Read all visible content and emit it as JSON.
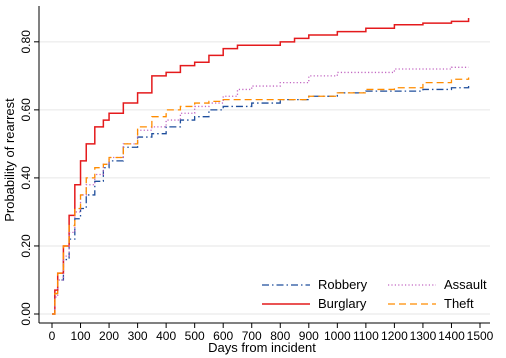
{
  "chart_data": {
    "type": "line",
    "title": "",
    "xlabel": "Days from incident",
    "ylabel": "Probability of rearrest",
    "xlim": [
      0,
      1500
    ],
    "ylim": [
      0,
      0.87
    ],
    "x_ticks": [
      0,
      100,
      200,
      300,
      400,
      500,
      600,
      700,
      800,
      900,
      1000,
      1100,
      1200,
      1300,
      1400,
      1500
    ],
    "x_tick_labels": [
      "0",
      "100",
      "200",
      "300",
      "400",
      "500",
      "600",
      "700",
      "800",
      "900",
      "1000",
      "1100",
      "1200",
      "1300",
      "1400",
      "1500"
    ],
    "y_ticks": [
      0,
      0.2,
      0.4,
      0.6,
      0.8
    ],
    "y_tick_labels": [
      "0.00",
      "0.20",
      "0.40",
      "0.60",
      "0.80"
    ],
    "grid": true,
    "legend_position": "bottom-right",
    "legend_columns": 2,
    "series": [
      {
        "name": "Robbery",
        "color": "#1f4e9c",
        "style": "dash-dot",
        "x": [
          0,
          10,
          20,
          40,
          60,
          80,
          100,
          120,
          150,
          180,
          200,
          250,
          300,
          350,
          400,
          450,
          500,
          550,
          600,
          700,
          800,
          900,
          1000,
          1100,
          1200,
          1300,
          1400,
          1460
        ],
        "y": [
          0,
          0.06,
          0.1,
          0.16,
          0.22,
          0.28,
          0.31,
          0.35,
          0.39,
          0.43,
          0.45,
          0.49,
          0.52,
          0.53,
          0.55,
          0.57,
          0.58,
          0.6,
          0.61,
          0.62,
          0.63,
          0.64,
          0.65,
          0.655,
          0.655,
          0.66,
          0.665,
          0.67
        ]
      },
      {
        "name": "Burglary",
        "color": "#e41a1c",
        "style": "solid",
        "x": [
          0,
          10,
          20,
          40,
          60,
          80,
          100,
          120,
          150,
          180,
          200,
          250,
          300,
          350,
          400,
          450,
          500,
          550,
          600,
          650,
          700,
          800,
          850,
          900,
          1000,
          1100,
          1200,
          1300,
          1400,
          1460
        ],
        "y": [
          0,
          0.07,
          0.12,
          0.2,
          0.29,
          0.38,
          0.45,
          0.5,
          0.55,
          0.57,
          0.59,
          0.62,
          0.65,
          0.7,
          0.71,
          0.73,
          0.74,
          0.76,
          0.78,
          0.79,
          0.79,
          0.8,
          0.81,
          0.82,
          0.83,
          0.84,
          0.85,
          0.855,
          0.86,
          0.87
        ]
      },
      {
        "name": "Assault",
        "color": "#c266c2",
        "style": "dotted",
        "x": [
          0,
          10,
          20,
          40,
          60,
          80,
          100,
          120,
          150,
          180,
          200,
          250,
          300,
          350,
          400,
          450,
          500,
          550,
          600,
          650,
          700,
          800,
          900,
          1000,
          1100,
          1200,
          1300,
          1400,
          1460
        ],
        "y": [
          0,
          0.05,
          0.1,
          0.17,
          0.24,
          0.3,
          0.35,
          0.38,
          0.41,
          0.44,
          0.46,
          0.5,
          0.54,
          0.55,
          0.57,
          0.59,
          0.61,
          0.62,
          0.64,
          0.66,
          0.67,
          0.68,
          0.7,
          0.71,
          0.71,
          0.72,
          0.72,
          0.725,
          0.725
        ]
      },
      {
        "name": "Theft",
        "color": "#ff8c00",
        "style": "dashed",
        "x": [
          0,
          10,
          20,
          40,
          60,
          80,
          100,
          120,
          150,
          180,
          200,
          250,
          300,
          350,
          400,
          450,
          500,
          550,
          600,
          700,
          800,
          900,
          1000,
          1100,
          1200,
          1300,
          1400,
          1460
        ],
        "y": [
          0,
          0.06,
          0.12,
          0.2,
          0.26,
          0.31,
          0.35,
          0.4,
          0.43,
          0.44,
          0.46,
          0.5,
          0.55,
          0.58,
          0.6,
          0.61,
          0.62,
          0.625,
          0.63,
          0.63,
          0.63,
          0.64,
          0.65,
          0.66,
          0.665,
          0.68,
          0.69,
          0.695
        ]
      }
    ]
  }
}
